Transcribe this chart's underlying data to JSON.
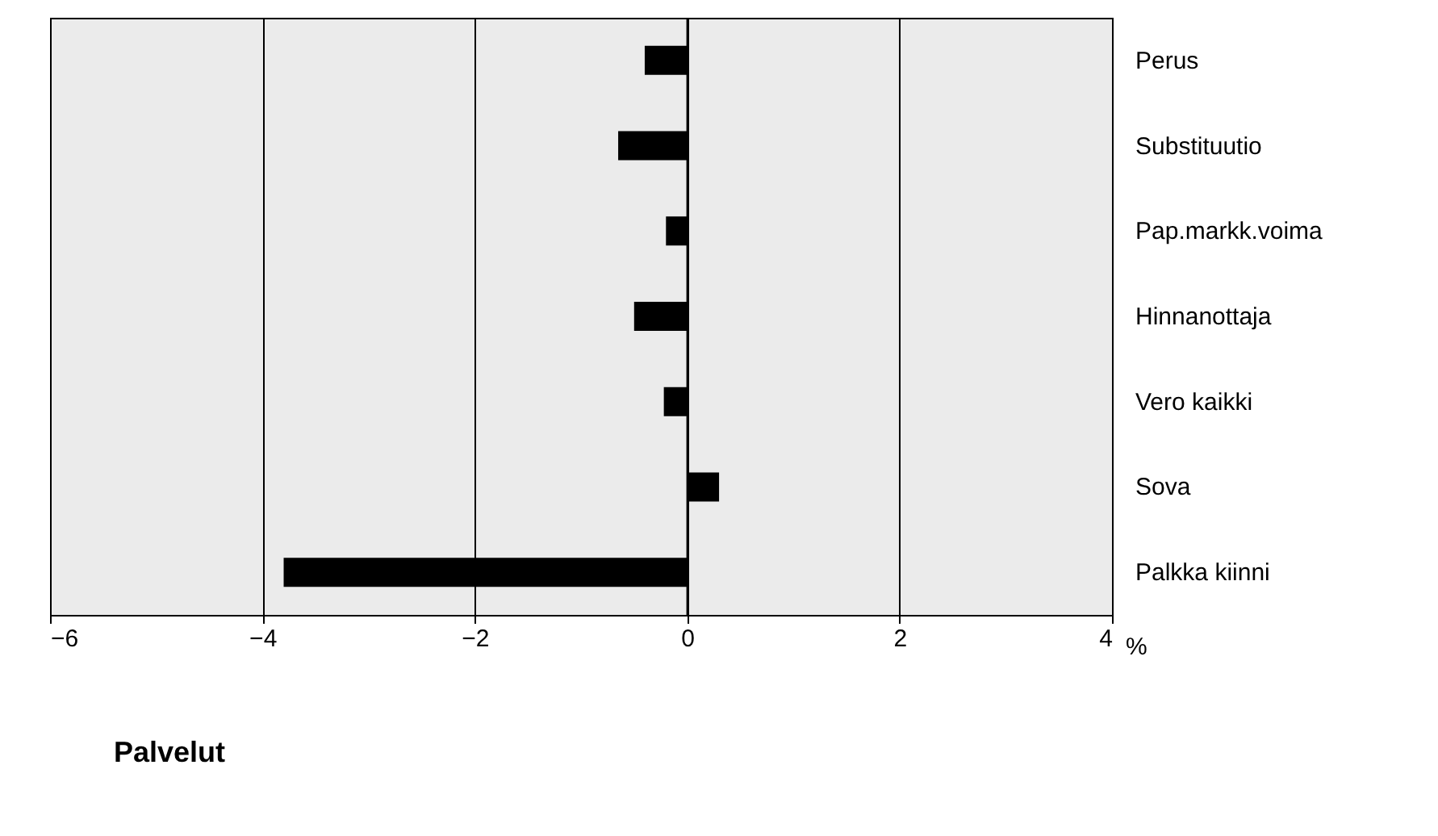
{
  "chart_data": {
    "type": "bar",
    "orientation": "horizontal",
    "title": "Palvelut",
    "xlabel": "%",
    "categories": [
      "Perus",
      "Substituutio",
      "Pap.markk.voima",
      "Hinnanottaja",
      "Vero kaikki",
      "Sova",
      "Palkka kiinni"
    ],
    "values": [
      -0.4,
      -0.65,
      -0.2,
      -0.5,
      -0.22,
      0.3,
      -3.8
    ],
    "color": "#000000",
    "xlim": [
      -6,
      4
    ],
    "xticks": [
      -6,
      -4,
      -2,
      0,
      2,
      4
    ],
    "grid": "x"
  }
}
